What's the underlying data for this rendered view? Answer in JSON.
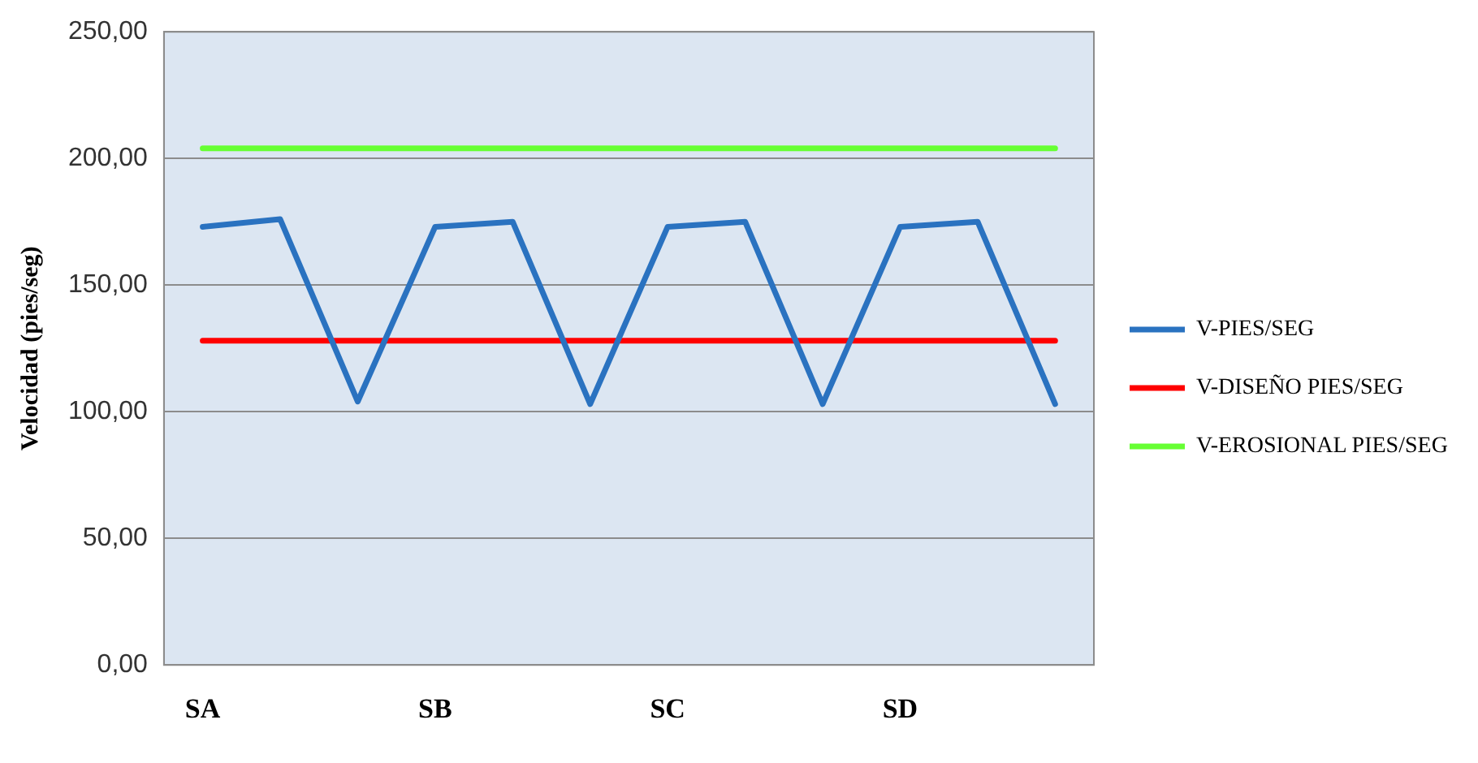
{
  "chart_data": {
    "type": "line",
    "ylabel": "Velocidad (pies/seg)",
    "categories": [
      "SA",
      null,
      null,
      "SB",
      null,
      null,
      "SC",
      null,
      null,
      "SD",
      null,
      null
    ],
    "series": [
      {
        "name": "V-PIES/SEG",
        "color": "#2a72c0",
        "values": [
          173,
          176,
          104,
          173,
          175,
          103,
          173,
          175,
          103,
          173,
          175,
          103
        ]
      },
      {
        "name": "V-DISEÑO PIES/SEG",
        "color": "#ff0000",
        "values": [
          128,
          128,
          128,
          128,
          128,
          128,
          128,
          128,
          128,
          128,
          128,
          128
        ]
      },
      {
        "name": "V-EROSIONAL PIES/SEG",
        "color": "#66ff33",
        "values": [
          204,
          204,
          204,
          204,
          204,
          204,
          204,
          204,
          204,
          204,
          204,
          204
        ]
      }
    ],
    "ylim": [
      0,
      250
    ],
    "yticks": [
      {
        "value": 0,
        "label": "0,00"
      },
      {
        "value": 50,
        "label": "50,00"
      },
      {
        "value": 100,
        "label": "100,00"
      },
      {
        "value": 150,
        "label": "150,00"
      },
      {
        "value": 200,
        "label": "200,00"
      },
      {
        "value": 250,
        "label": "250,00"
      }
    ],
    "grid": "y",
    "legend": "right",
    "marker": "none",
    "line_style": "solid"
  }
}
